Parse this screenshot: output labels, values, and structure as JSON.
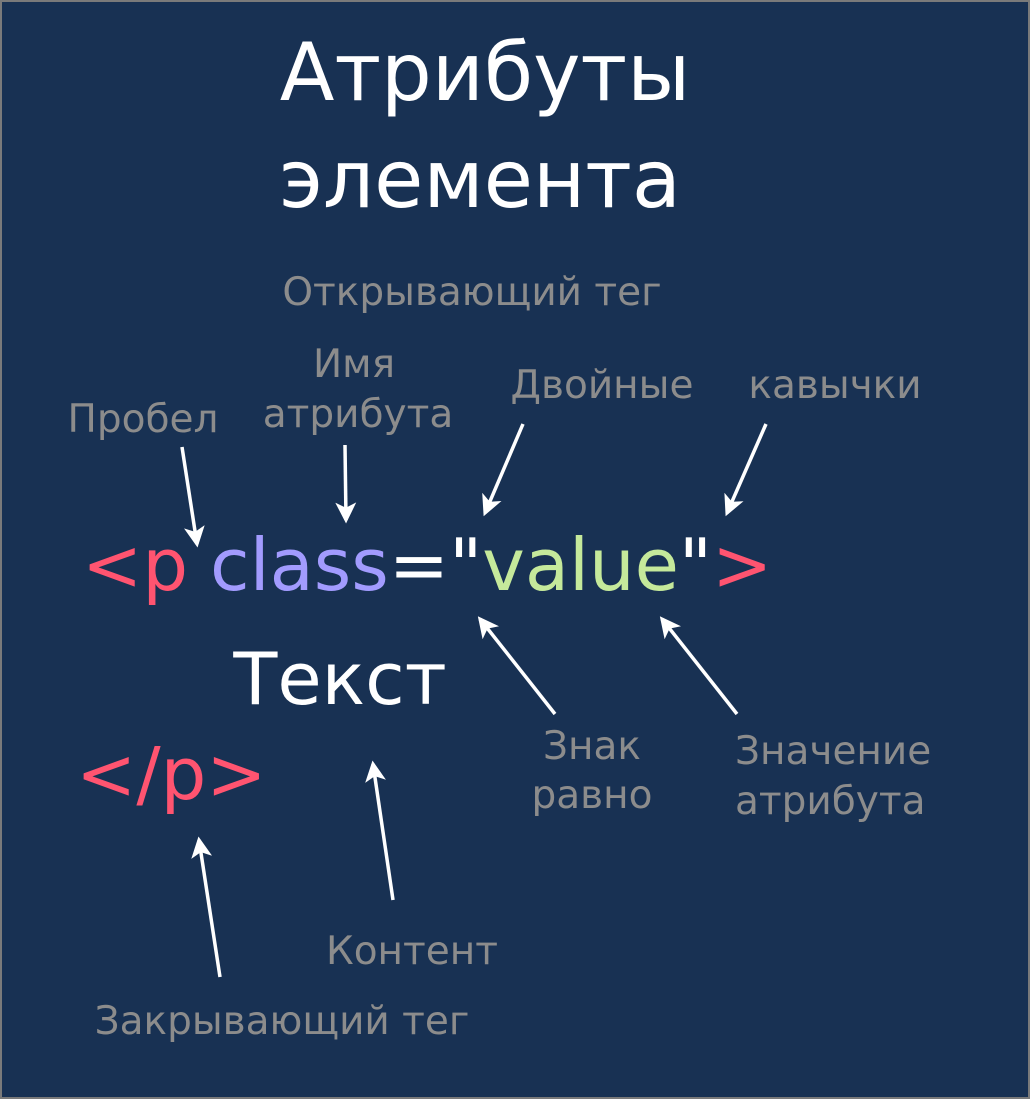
{
  "title": {
    "line1": "Атрибуты",
    "line2": "элемента"
  },
  "code": {
    "open_bracket": "<p",
    "attr_name": "class",
    "equals": "=",
    "quote_open": "\"",
    "attr_value": "value",
    "quote_close": "\"",
    "close_bracket": ">",
    "content": "Текст",
    "closing_tag": "</p>"
  },
  "labels": {
    "opening_tag": "Открывающий тег",
    "attr_name_1": "Имя",
    "attr_name_2": "атрибута",
    "space": "Пробел",
    "double": "Двойные",
    "quotes": "кавычки",
    "equals_1": "Знак",
    "equals_2": "равно",
    "value_1": "Значение",
    "value_2": "атрибута",
    "content": "Контент",
    "closing_tag": "Закрывающий тег"
  },
  "colors": {
    "background": "#183153",
    "tag": "#ff5470",
    "attr_name": "#a29bfe",
    "attr_value": "#c5e99b",
    "text": "#ffffff",
    "label": "#8c8c8c"
  }
}
